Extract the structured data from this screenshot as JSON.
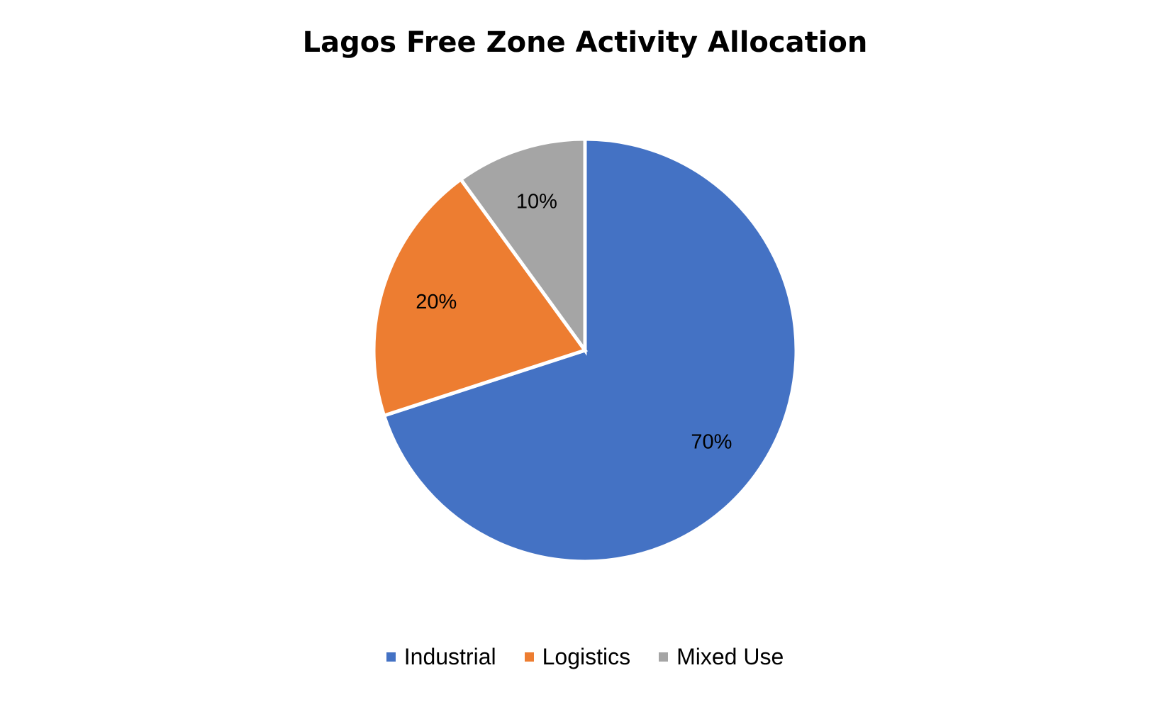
{
  "chart_data": {
    "type": "pie",
    "title": "Lagos Free Zone Activity Allocation",
    "categories": [
      "Industrial",
      "Logistics",
      "Mixed Use"
    ],
    "values": [
      70,
      20,
      10
    ],
    "data_labels": [
      "70%",
      "20%",
      "10%"
    ],
    "colors": [
      "#4472C4",
      "#ED7D31",
      "#A5A5A5"
    ],
    "legend_position": "bottom",
    "start_angle": "top (12 o'clock), clockwise"
  }
}
